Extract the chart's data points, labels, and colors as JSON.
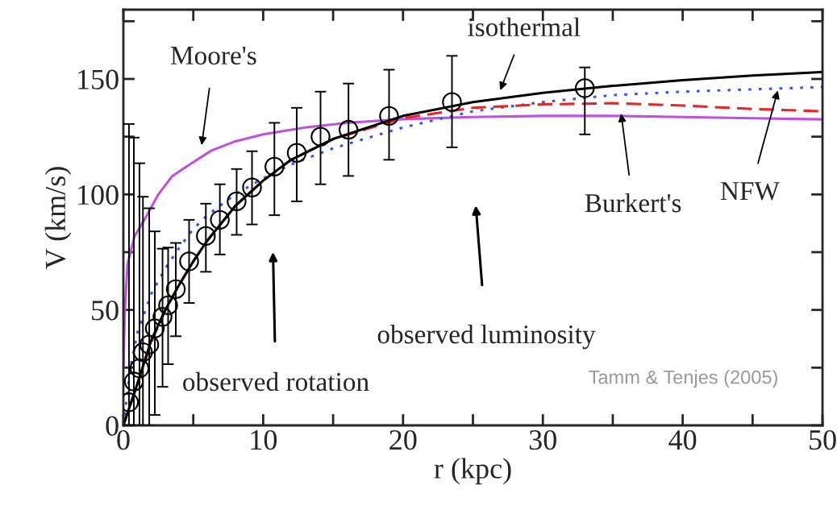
{
  "chart_data": {
    "type": "line",
    "xlabel": "r (kpc)",
    "ylabel": "V (km/s)",
    "xlim": [
      0,
      50
    ],
    "ylim": [
      0,
      180
    ],
    "xticks": [
      0,
      {
        "value": 5,
        "label": null
      },
      10,
      {
        "value": 15,
        "label": null
      },
      20,
      {
        "value": 25,
        "label": null
      },
      30,
      {
        "value": 35,
        "label": null
      },
      40,
      {
        "value": 45,
        "label": null
      },
      50
    ],
    "yticks": [
      0,
      {
        "value": 25,
        "label": null
      },
      50,
      {
        "value": 75,
        "label": null
      },
      100,
      {
        "value": 125,
        "label": null
      },
      150,
      {
        "value": 175,
        "label": null
      }
    ],
    "grid": false,
    "legend": false,
    "series": [
      {
        "color": "#c050e0",
        "line_style": "solid",
        "marker": "none",
        "x": [
          0,
          0.1,
          0.3,
          0.8,
          1.5,
          2.5,
          3.5,
          5,
          6.3,
          8,
          10,
          13,
          16,
          20,
          25,
          30,
          35,
          40,
          45,
          50
        ],
        "values": [
          25,
          50,
          70,
          82,
          89,
          100,
          108,
          114,
          119,
          123,
          126,
          129,
          131,
          132.6,
          133.5,
          134,
          134,
          133.5,
          133,
          132.5
        ]
      },
      {
        "color": "#3355ee",
        "line_style": "dotted",
        "marker": "none",
        "x": [
          0,
          0.5,
          1,
          2,
          3,
          4,
          5,
          6,
          8,
          10,
          12,
          15,
          20,
          25,
          30,
          35,
          40,
          45,
          50
        ],
        "values": [
          0,
          25,
          40,
          57,
          68,
          77,
          85,
          91,
          100,
          107,
          113,
          120,
          129,
          136,
          140,
          143,
          144.5,
          145.5,
          146.5
        ]
      },
      {
        "color": "#ee2222",
        "line_style": "dashed",
        "marker": "none",
        "x": [
          0,
          1,
          2,
          3,
          4,
          5,
          6,
          8,
          10,
          12,
          15,
          20,
          25,
          30,
          35,
          40,
          45,
          50
        ],
        "values": [
          0,
          18,
          36,
          50,
          61,
          71,
          80,
          95,
          106,
          115,
          124,
          133,
          137.5,
          139,
          139.5,
          138.5,
          137,
          136
        ]
      },
      {
        "color": "#000000",
        "line_style": "solid",
        "marker": "none",
        "x": [
          0,
          1,
          2,
          3,
          4,
          5,
          6,
          8,
          10,
          12,
          15,
          20,
          25,
          30,
          35,
          40,
          45,
          50
        ],
        "values": [
          0,
          18,
          37,
          50,
          61,
          71,
          80,
          95,
          106,
          115,
          124,
          134,
          140,
          144,
          147,
          149.5,
          151.5,
          153
        ]
      },
      {
        "type": "scatter",
        "color": "#000000",
        "marker": "circle",
        "x": [
          0.4,
          0.75,
          1.15,
          1.4,
          1.85,
          2.25,
          2.8,
          3.2,
          3.75,
          4.7,
          5.9,
          6.9,
          8.1,
          9.2,
          10.8,
          12.4,
          14.1,
          16.1,
          19.0,
          23.5,
          33.0
        ],
        "values": [
          10,
          19,
          24.7,
          31.7,
          35,
          42,
          47,
          52,
          59,
          71,
          82,
          89,
          97,
          103,
          112,
          118,
          125,
          128,
          134,
          140,
          146
        ],
        "errors": [
          [
            0,
            130.5
          ],
          [
            0,
            124.6
          ],
          [
            0,
            113.5
          ],
          [
            0,
            99
          ],
          [
            0,
            94
          ],
          [
            4.5,
            84
          ],
          [
            16.7,
            76.5
          ],
          [
            26.5,
            77
          ],
          [
            38.6,
            79
          ],
          [
            53,
            89
          ],
          [
            66.5,
            96
          ],
          [
            74,
            104.4
          ],
          [
            82.5,
            111
          ],
          [
            87,
            118.7
          ],
          [
            91,
            131
          ],
          [
            97,
            137.5
          ],
          [
            104.4,
            144.5
          ],
          [
            108,
            148
          ],
          [
            115,
            154
          ],
          [
            120.4,
            160
          ],
          [
            126,
            155
          ]
        ]
      }
    ],
    "annotations": [
      "Moore's",
      "isothermal",
      {
        "text": "Burkert's",
        "x": 35.6,
        "y": 135
      },
      {
        "text": "NFW",
        "x": 46.8,
        "y": 145
      },
      "observed rotation",
      "observed luminosity",
      "Tamm & Tenjes (2005)"
    ]
  }
}
